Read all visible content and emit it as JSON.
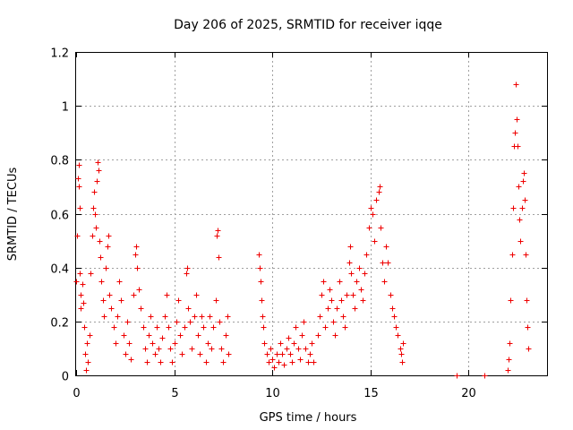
{
  "chart_data": {
    "type": "scatter",
    "title": "Day 206 of 2025, SRMTID for receiver iqqe",
    "xlabel": "GPS time / hours",
    "ylabel": "SRMTID / TECUs",
    "xlim": [
      0,
      24
    ],
    "ylim": [
      0,
      1.2
    ],
    "xticks": [
      0,
      5,
      10,
      15,
      20
    ],
    "xtick_labels": [
      "0",
      "5",
      "10",
      "15",
      "20"
    ],
    "yticks": [
      0,
      0.2,
      0.4,
      0.6,
      0.8,
      1.0,
      1.2
    ],
    "ytick_labels": [
      "0",
      "0.2",
      "0.4",
      "0.6",
      "0.8",
      "1",
      "1.2"
    ],
    "grid": true,
    "marker": "+",
    "color": "#ee0000",
    "series": [
      {
        "name": "SRMTID",
        "points": [
          [
            0.0,
            0.35
          ],
          [
            0.05,
            0.52
          ],
          [
            0.1,
            0.73
          ],
          [
            0.12,
            0.78
          ],
          [
            0.15,
            0.7
          ],
          [
            0.18,
            0.62
          ],
          [
            0.2,
            0.38
          ],
          [
            0.22,
            0.3
          ],
          [
            0.25,
            0.25
          ],
          [
            0.3,
            0.34
          ],
          [
            0.35,
            0.27
          ],
          [
            0.4,
            0.18
          ],
          [
            0.45,
            0.08
          ],
          [
            0.5,
            0.02
          ],
          [
            0.55,
            0.12
          ],
          [
            0.6,
            0.05
          ],
          [
            0.7,
            0.15
          ],
          [
            0.75,
            0.38
          ],
          [
            0.8,
            0.52
          ],
          [
            0.85,
            0.62
          ],
          [
            0.9,
            0.68
          ],
          [
            0.95,
            0.6
          ],
          [
            1.0,
            0.55
          ],
          [
            1.05,
            0.72
          ],
          [
            1.1,
            0.79
          ],
          [
            1.15,
            0.76
          ],
          [
            1.2,
            0.5
          ],
          [
            1.25,
            0.44
          ],
          [
            1.3,
            0.35
          ],
          [
            1.35,
            0.28
          ],
          [
            1.4,
            0.22
          ],
          [
            1.5,
            0.4
          ],
          [
            1.6,
            0.48
          ],
          [
            1.65,
            0.52
          ],
          [
            1.7,
            0.3
          ],
          [
            1.8,
            0.25
          ],
          [
            1.9,
            0.18
          ],
          [
            2.0,
            0.12
          ],
          [
            2.1,
            0.22
          ],
          [
            2.2,
            0.35
          ],
          [
            2.3,
            0.28
          ],
          [
            2.4,
            0.15
          ],
          [
            2.5,
            0.08
          ],
          [
            2.6,
            0.2
          ],
          [
            2.7,
            0.12
          ],
          [
            2.8,
            0.06
          ],
          [
            2.9,
            0.3
          ],
          [
            3.0,
            0.45
          ],
          [
            3.05,
            0.48
          ],
          [
            3.1,
            0.4
          ],
          [
            3.2,
            0.32
          ],
          [
            3.3,
            0.25
          ],
          [
            3.4,
            0.18
          ],
          [
            3.5,
            0.1
          ],
          [
            3.6,
            0.05
          ],
          [
            3.7,
            0.15
          ],
          [
            3.8,
            0.22
          ],
          [
            3.9,
            0.12
          ],
          [
            4.0,
            0.08
          ],
          [
            4.1,
            0.18
          ],
          [
            4.2,
            0.1
          ],
          [
            4.3,
            0.05
          ],
          [
            4.4,
            0.14
          ],
          [
            4.5,
            0.22
          ],
          [
            4.6,
            0.3
          ],
          [
            4.7,
            0.18
          ],
          [
            4.8,
            0.1
          ],
          [
            4.9,
            0.05
          ],
          [
            5.0,
            0.12
          ],
          [
            5.1,
            0.2
          ],
          [
            5.2,
            0.28
          ],
          [
            5.3,
            0.15
          ],
          [
            5.4,
            0.08
          ],
          [
            5.5,
            0.18
          ],
          [
            5.6,
            0.38
          ],
          [
            5.65,
            0.4
          ],
          [
            5.7,
            0.25
          ],
          [
            5.8,
            0.2
          ],
          [
            5.9,
            0.1
          ],
          [
            6.0,
            0.22
          ],
          [
            6.1,
            0.3
          ],
          [
            6.2,
            0.15
          ],
          [
            6.3,
            0.08
          ],
          [
            6.4,
            0.22
          ],
          [
            6.5,
            0.18
          ],
          [
            6.6,
            0.05
          ],
          [
            6.7,
            0.12
          ],
          [
            6.8,
            0.22
          ],
          [
            6.9,
            0.1
          ],
          [
            7.0,
            0.18
          ],
          [
            7.1,
            0.28
          ],
          [
            7.15,
            0.52
          ],
          [
            7.2,
            0.54
          ],
          [
            7.25,
            0.44
          ],
          [
            7.3,
            0.2
          ],
          [
            7.4,
            0.1
          ],
          [
            7.5,
            0.05
          ],
          [
            7.6,
            0.15
          ],
          [
            7.7,
            0.22
          ],
          [
            7.75,
            0.08
          ],
          [
            9.3,
            0.45
          ],
          [
            9.35,
            0.4
          ],
          [
            9.4,
            0.35
          ],
          [
            9.45,
            0.28
          ],
          [
            9.5,
            0.22
          ],
          [
            9.55,
            0.18
          ],
          [
            9.6,
            0.12
          ],
          [
            9.7,
            0.08
          ],
          [
            9.8,
            0.05
          ],
          [
            9.9,
            0.1
          ],
          [
            10.0,
            0.06
          ],
          [
            10.1,
            0.03
          ],
          [
            10.2,
            0.08
          ],
          [
            10.3,
            0.05
          ],
          [
            10.4,
            0.12
          ],
          [
            10.5,
            0.08
          ],
          [
            10.6,
            0.04
          ],
          [
            10.7,
            0.1
          ],
          [
            10.8,
            0.14
          ],
          [
            10.9,
            0.08
          ],
          [
            11.0,
            0.05
          ],
          [
            11.1,
            0.12
          ],
          [
            11.2,
            0.18
          ],
          [
            11.3,
            0.1
          ],
          [
            11.4,
            0.06
          ],
          [
            11.5,
            0.15
          ],
          [
            11.6,
            0.2
          ],
          [
            11.7,
            0.1
          ],
          [
            11.8,
            0.05
          ],
          [
            11.9,
            0.08
          ],
          [
            12.0,
            0.12
          ],
          [
            12.1,
            0.05
          ],
          [
            12.3,
            0.15
          ],
          [
            12.4,
            0.22
          ],
          [
            12.5,
            0.3
          ],
          [
            12.6,
            0.35
          ],
          [
            12.7,
            0.18
          ],
          [
            12.8,
            0.25
          ],
          [
            12.9,
            0.32
          ],
          [
            13.0,
            0.28
          ],
          [
            13.1,
            0.2
          ],
          [
            13.2,
            0.15
          ],
          [
            13.3,
            0.25
          ],
          [
            13.4,
            0.35
          ],
          [
            13.5,
            0.28
          ],
          [
            13.6,
            0.22
          ],
          [
            13.7,
            0.18
          ],
          [
            13.8,
            0.3
          ],
          [
            13.9,
            0.42
          ],
          [
            13.95,
            0.48
          ],
          [
            14.0,
            0.38
          ],
          [
            14.1,
            0.3
          ],
          [
            14.2,
            0.25
          ],
          [
            14.3,
            0.35
          ],
          [
            14.4,
            0.4
          ],
          [
            14.5,
            0.32
          ],
          [
            14.6,
            0.28
          ],
          [
            14.7,
            0.38
          ],
          [
            14.8,
            0.45
          ],
          [
            14.9,
            0.55
          ],
          [
            15.0,
            0.62
          ],
          [
            15.1,
            0.6
          ],
          [
            15.2,
            0.5
          ],
          [
            15.3,
            0.65
          ],
          [
            15.4,
            0.68
          ],
          [
            15.45,
            0.7
          ],
          [
            15.5,
            0.55
          ],
          [
            15.6,
            0.42
          ],
          [
            15.7,
            0.35
          ],
          [
            15.8,
            0.48
          ],
          [
            15.9,
            0.42
          ],
          [
            16.0,
            0.3
          ],
          [
            16.1,
            0.25
          ],
          [
            16.2,
            0.22
          ],
          [
            16.3,
            0.18
          ],
          [
            16.4,
            0.15
          ],
          [
            16.5,
            0.1
          ],
          [
            16.55,
            0.08
          ],
          [
            16.6,
            0.05
          ],
          [
            16.65,
            0.12
          ],
          [
            19.4,
            0.0
          ],
          [
            20.8,
            0.0
          ],
          [
            22.0,
            0.02
          ],
          [
            22.05,
            0.06
          ],
          [
            22.1,
            0.12
          ],
          [
            22.15,
            0.28
          ],
          [
            22.2,
            0.45
          ],
          [
            22.25,
            0.62
          ],
          [
            22.3,
            0.85
          ],
          [
            22.35,
            0.9
          ],
          [
            22.4,
            1.08
          ],
          [
            22.45,
            0.95
          ],
          [
            22.5,
            0.85
          ],
          [
            22.55,
            0.7
          ],
          [
            22.6,
            0.58
          ],
          [
            22.65,
            0.5
          ],
          [
            22.7,
            0.62
          ],
          [
            22.75,
            0.72
          ],
          [
            22.8,
            0.75
          ],
          [
            22.85,
            0.65
          ],
          [
            22.9,
            0.45
          ],
          [
            22.95,
            0.28
          ],
          [
            23.0,
            0.18
          ],
          [
            23.05,
            0.1
          ]
        ]
      }
    ]
  }
}
